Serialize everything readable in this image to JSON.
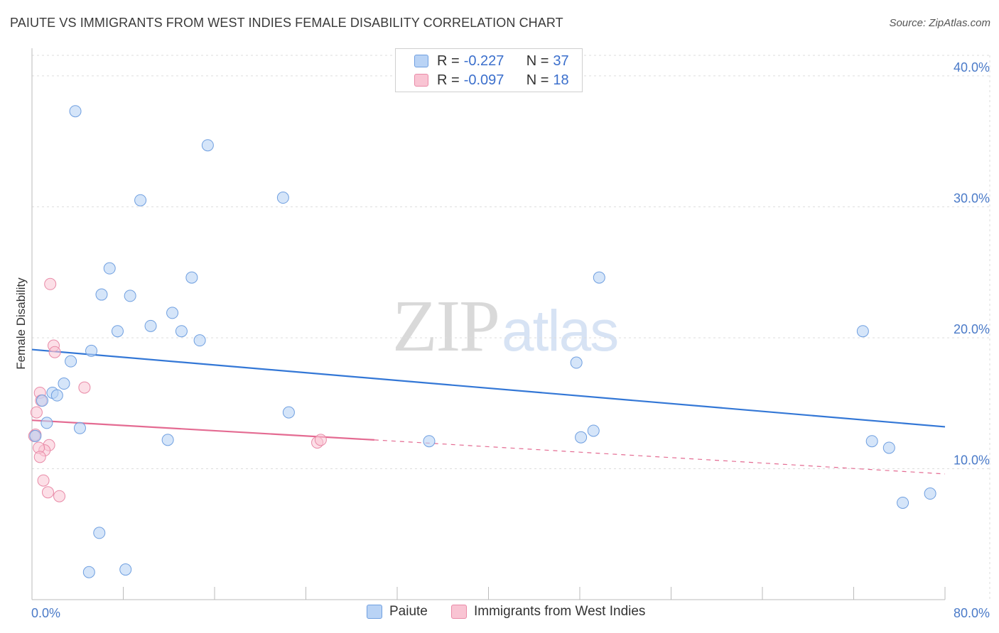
{
  "title": "PAIUTE VS IMMIGRANTS FROM WEST INDIES FEMALE DISABILITY CORRELATION CHART",
  "source": "Source: ZipAtlas.com",
  "watermark": {
    "zip": "ZIP",
    "atlas": "atlas"
  },
  "colors": {
    "paiute_fill": "#b9d3f5",
    "paiute_stroke": "#6f9fe0",
    "paiute_line": "#3377d6",
    "wi_fill": "#f9c4d3",
    "wi_stroke": "#e98aa7",
    "wi_line": "#e46b92",
    "grid": "#dddddd",
    "tick_text": "#4a7ac8"
  },
  "legend": {
    "rows": [
      {
        "r_label": "R = ",
        "r_value": "-0.227",
        "n_label": "N = ",
        "n_value": "37"
      },
      {
        "r_label": "R = ",
        "r_value": "-0.097",
        "n_label": "N = ",
        "n_value": "18"
      }
    ]
  },
  "bottom_legend": {
    "series1": "Paiute",
    "series2": "Immigrants from West Indies"
  },
  "chart_data": {
    "type": "scatter",
    "title": "PAIUTE VS IMMIGRANTS FROM WEST INDIES FEMALE DISABILITY CORRELATION CHART",
    "xlabel": "",
    "ylabel": "Female Disability",
    "xlim": [
      0,
      80
    ],
    "ylim": [
      0,
      42
    ],
    "x_tick_labels": [
      "0.0%",
      "80.0%"
    ],
    "y_ticks": [
      10,
      20,
      30,
      40
    ],
    "y_tick_labels": [
      "10.0%",
      "20.0%",
      "30.0%",
      "40.0%"
    ],
    "grid": true,
    "series": [
      {
        "name": "Paiute",
        "points": [
          [
            3.8,
            37.3
          ],
          [
            15.4,
            34.7
          ],
          [
            9.5,
            30.5
          ],
          [
            22.0,
            30.7
          ],
          [
            6.8,
            25.3
          ],
          [
            14.0,
            24.6
          ],
          [
            6.1,
            23.3
          ],
          [
            8.6,
            23.2
          ],
          [
            12.3,
            21.9
          ],
          [
            10.4,
            20.9
          ],
          [
            7.5,
            20.5
          ],
          [
            13.1,
            20.5
          ],
          [
            14.7,
            19.8
          ],
          [
            5.2,
            19.0
          ],
          [
            3.4,
            18.2
          ],
          [
            2.8,
            16.5
          ],
          [
            1.8,
            15.8
          ],
          [
            2.2,
            15.6
          ],
          [
            0.9,
            15.2
          ],
          [
            1.3,
            13.5
          ],
          [
            4.2,
            13.1
          ],
          [
            11.9,
            12.2
          ],
          [
            22.5,
            14.3
          ],
          [
            34.8,
            12.1
          ],
          [
            48.1,
            12.4
          ],
          [
            49.2,
            12.9
          ],
          [
            47.7,
            18.1
          ],
          [
            49.7,
            24.6
          ],
          [
            72.8,
            20.5
          ],
          [
            73.6,
            12.1
          ],
          [
            75.1,
            11.6
          ],
          [
            76.3,
            7.4
          ],
          [
            78.7,
            8.1
          ],
          [
            5.9,
            5.1
          ],
          [
            5.0,
            2.1
          ],
          [
            8.2,
            2.3
          ],
          [
            0.3,
            12.5
          ]
        ],
        "trend": {
          "x": [
            0,
            80
          ],
          "y": [
            19.1,
            13.2
          ]
        }
      },
      {
        "name": "Immigrants from West Indies",
        "points": [
          [
            1.6,
            24.1
          ],
          [
            1.9,
            19.4
          ],
          [
            2.0,
            18.9
          ],
          [
            4.6,
            16.2
          ],
          [
            0.7,
            15.8
          ],
          [
            0.8,
            15.2
          ],
          [
            0.4,
            14.3
          ],
          [
            1.5,
            11.8
          ],
          [
            1.1,
            11.4
          ],
          [
            0.6,
            11.6
          ],
          [
            0.7,
            10.9
          ],
          [
            0.3,
            12.6
          ],
          [
            1.0,
            9.1
          ],
          [
            1.4,
            8.2
          ],
          [
            2.4,
            7.9
          ],
          [
            25.0,
            12.0
          ],
          [
            25.3,
            12.2
          ],
          [
            0.2,
            12.5
          ]
        ],
        "trend": {
          "x": [
            0,
            30
          ],
          "y": [
            13.7,
            12.2
          ]
        },
        "trend_dashed_extension": {
          "x": [
            30,
            80
          ],
          "y": [
            12.2,
            9.6
          ]
        }
      }
    ]
  }
}
